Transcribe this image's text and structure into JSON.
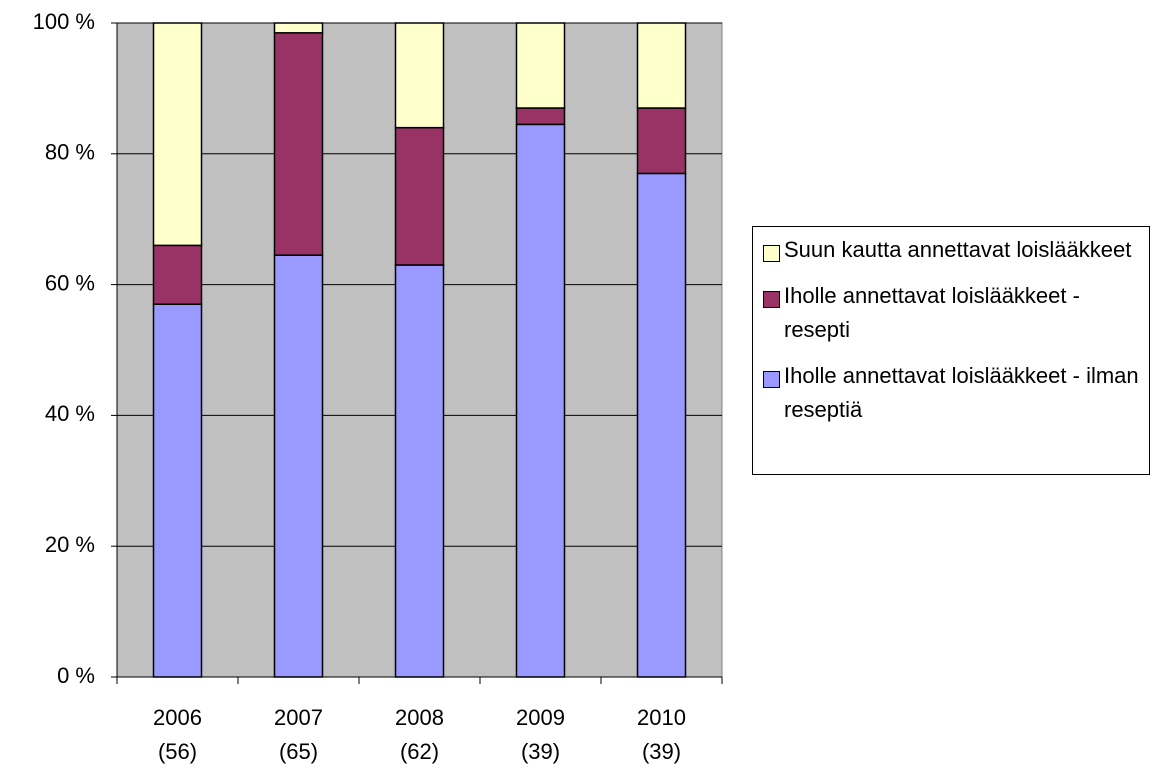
{
  "chart_data": {
    "type": "stacked_bar",
    "categories": [
      "2006\n(56)",
      "2007\n(65)",
      "2008\n(62)",
      "2009\n(39)",
      "2010\n(39)"
    ],
    "series": [
      {
        "name": "Iholle annettavat loislääkkeet - ilman reseptiä",
        "color": "#9999ff",
        "values": [
          57,
          64.5,
          63,
          84.5,
          77
        ]
      },
      {
        "name": "Iholle annettavat loislääkkeet - resepti",
        "color": "#993366",
        "values": [
          9,
          34,
          21,
          2.5,
          10
        ]
      },
      {
        "name": "Suun kautta annettavat loislääkkeet",
        "color": "#ffffcc",
        "values": [
          34,
          1.5,
          16,
          13,
          13
        ]
      }
    ],
    "ylim": [
      0,
      100
    ],
    "yticks": [
      {
        "value": 0,
        "label": "0 %"
      },
      {
        "value": 20,
        "label": "20 %"
      },
      {
        "value": 40,
        "label": "40 %"
      },
      {
        "value": 60,
        "label": "60 %"
      },
      {
        "value": 80,
        "label": "80 %"
      },
      {
        "value": 100,
        "label": "100 %"
      }
    ],
    "grid": true,
    "legend": "right"
  }
}
